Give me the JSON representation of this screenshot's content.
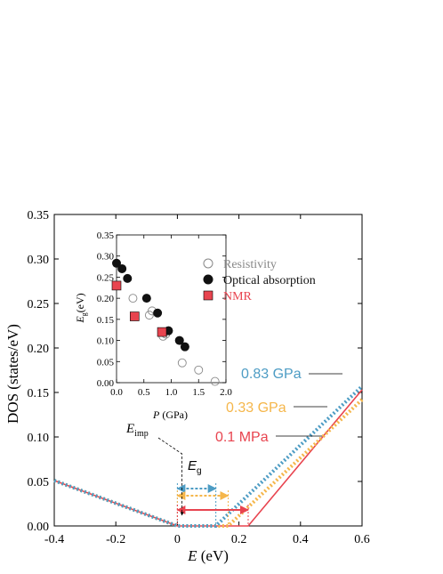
{
  "chart_data": [
    {
      "type": "line",
      "xlabel": "E (eV)",
      "xlabel_var": "E",
      "xlabel_unit": "(eV)",
      "ylabel": "DOS (states/eV)",
      "xlim": [
        -0.4,
        0.6
      ],
      "ylim": [
        0,
        0.35
      ],
      "xticks": [
        "-0.4",
        "-0.2",
        "0",
        "0.2",
        "0.4",
        "0.6"
      ],
      "yticks": [
        "0.00",
        "0.05",
        "0.10",
        "0.15",
        "0.20",
        "0.25",
        "0.30",
        "0.35"
      ],
      "grid": false,
      "series": [
        {
          "name": "0.1 MPa",
          "color": "#e8444f",
          "style": "solid",
          "x": [
            -0.4,
            0.0,
            0.23,
            0.6
          ],
          "y": [
            0.051,
            0.0,
            0.0,
            0.153
          ]
        },
        {
          "name": "0.33 GPa",
          "color": "#f5b64a",
          "style": "dotted",
          "x": [
            -0.4,
            0.0,
            0.165,
            0.6
          ],
          "y": [
            0.051,
            0.0,
            0.0,
            0.142
          ]
        },
        {
          "name": "0.83 GPa",
          "color": "#4d9cc4",
          "style": "dotted",
          "x": [
            -0.4,
            0.0,
            0.125,
            0.6
          ],
          "y": [
            0.051,
            0.0,
            0.0,
            0.157
          ]
        }
      ],
      "gap_arrows": [
        {
          "color": "#4d9cc4",
          "style": "dotted",
          "x0": 0.0,
          "x1": 0.125,
          "y": 0.042
        },
        {
          "color": "#f5b64a",
          "style": "dotted",
          "x0": 0.0,
          "x1": 0.165,
          "y": 0.034
        },
        {
          "color": "#e8444f",
          "style": "solid",
          "x0": 0.0,
          "x1": 0.23,
          "y": 0.018
        }
      ],
      "annotations": {
        "eg_var": "E",
        "eg_sub": "g",
        "eimp_var": "E",
        "eimp_sub": "imp",
        "eimp_x": 0.015
      }
    },
    {
      "type": "scatter",
      "xlabel": "P (GPa)",
      "xlabel_var": "P",
      "xlabel_unit": "(GPa)",
      "ylabel": "Eg (eV)",
      "ylabel_var": "E",
      "ylabel_sub": "g",
      "ylabel_unit": "(eV)",
      "xlim": [
        0,
        2.0
      ],
      "ylim": [
        0,
        0.35
      ],
      "xticks": [
        "0.0",
        "0.5",
        "1.0",
        "1.5",
        "2.0"
      ],
      "yticks": [
        "0.00",
        "0.05",
        "0.10",
        "0.15",
        "0.20",
        "0.25",
        "0.30",
        "0.35"
      ],
      "grid": false,
      "legend_position": "right",
      "series": [
        {
          "name": "Resistivity",
          "marker": "open-circle",
          "color": "#888888",
          "x": [
            0.3,
            0.6,
            0.65,
            0.85,
            0.9,
            1.2,
            1.5,
            1.8
          ],
          "y": [
            0.2,
            0.16,
            0.17,
            0.11,
            0.115,
            0.047,
            0.03,
            0.003
          ]
        },
        {
          "name": "Optical absorption",
          "marker": "filled-circle",
          "color": "#111111",
          "x": [
            0.0,
            0.1,
            0.2,
            0.55,
            0.75,
            0.95,
            1.15,
            1.25
          ],
          "y": [
            0.283,
            0.27,
            0.247,
            0.2,
            0.165,
            0.123,
            0.1,
            0.085
          ]
        },
        {
          "name": "NMR",
          "marker": "square",
          "color": "#e8444f",
          "x": [
            0.0,
            0.33,
            0.83
          ],
          "y": [
            0.23,
            0.157,
            0.12
          ]
        }
      ]
    }
  ]
}
